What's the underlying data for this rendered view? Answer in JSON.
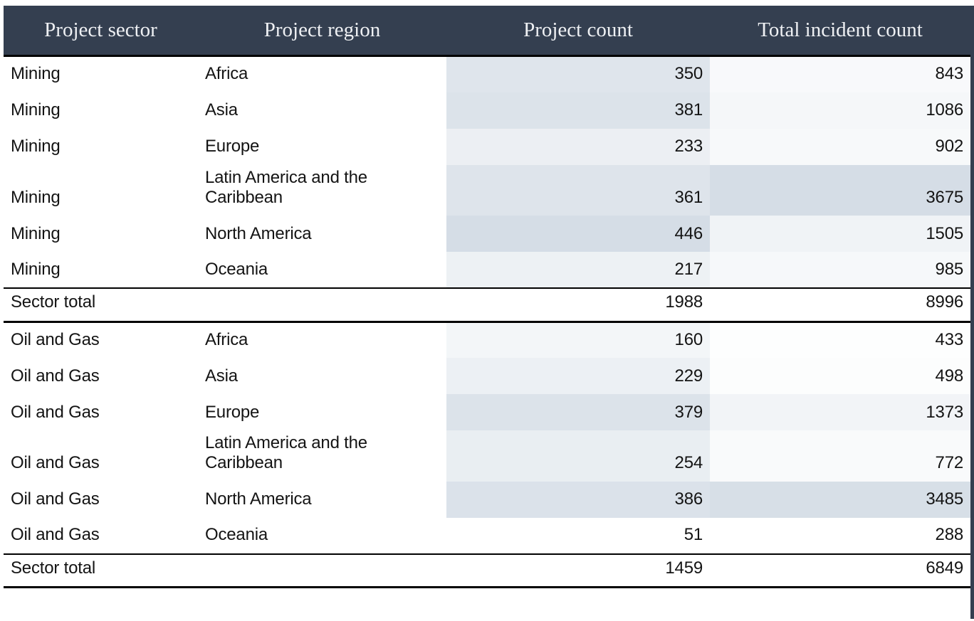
{
  "chart_data": {
    "type": "table",
    "columns": [
      "Project sector",
      "Project region",
      "Project count",
      "Total incident count"
    ],
    "sections": [
      {
        "sector": "Mining",
        "rows": [
          {
            "sector": "Mining",
            "region": "Africa",
            "project_count": 350,
            "incident_count": 843
          },
          {
            "sector": "Mining",
            "region": "Asia",
            "project_count": 381,
            "incident_count": 1086
          },
          {
            "sector": "Mining",
            "region": "Europe",
            "project_count": 233,
            "incident_count": 902
          },
          {
            "sector": "Mining",
            "region": "Latin America and the Caribbean",
            "project_count": 361,
            "incident_count": 3675
          },
          {
            "sector": "Mining",
            "region": "North America",
            "project_count": 446,
            "incident_count": 1505
          },
          {
            "sector": "Mining",
            "region": "Oceania",
            "project_count": 217,
            "incident_count": 985
          }
        ],
        "total": {
          "label": "Sector total",
          "project_count": 1988,
          "incident_count": 8996
        }
      },
      {
        "sector": "Oil and Gas",
        "rows": [
          {
            "sector": "Oil and Gas",
            "region": "Africa",
            "project_count": 160,
            "incident_count": 433
          },
          {
            "sector": "Oil and Gas",
            "region": "Asia",
            "project_count": 229,
            "incident_count": 498
          },
          {
            "sector": "Oil and Gas",
            "region": "Europe",
            "project_count": 379,
            "incident_count": 1373
          },
          {
            "sector": "Oil and Gas",
            "region": "Latin America and the Caribbean",
            "project_count": 254,
            "incident_count": 772
          },
          {
            "sector": "Oil and Gas",
            "region": "North America",
            "project_count": 386,
            "incident_count": 3485
          },
          {
            "sector": "Oil and Gas",
            "region": "Oceania",
            "project_count": 51,
            "incident_count": 288
          }
        ],
        "total": {
          "label": "Sector total",
          "project_count": 1459,
          "incident_count": 6849
        }
      }
    ],
    "heatmap": {
      "min_color": "#ffffff",
      "max_color": "#d5dde6",
      "columns": {
        "project_count": {
          "min": 51,
          "max": 446
        },
        "incident_count": {
          "min": 288,
          "max": 3675
        }
      }
    },
    "layout": {
      "header_bg": "#343f50",
      "header_text_color": "#eef0f3",
      "rule_color": "#000000",
      "numeric_columns_shaded": true,
      "legend": "none",
      "grid": "off"
    }
  }
}
